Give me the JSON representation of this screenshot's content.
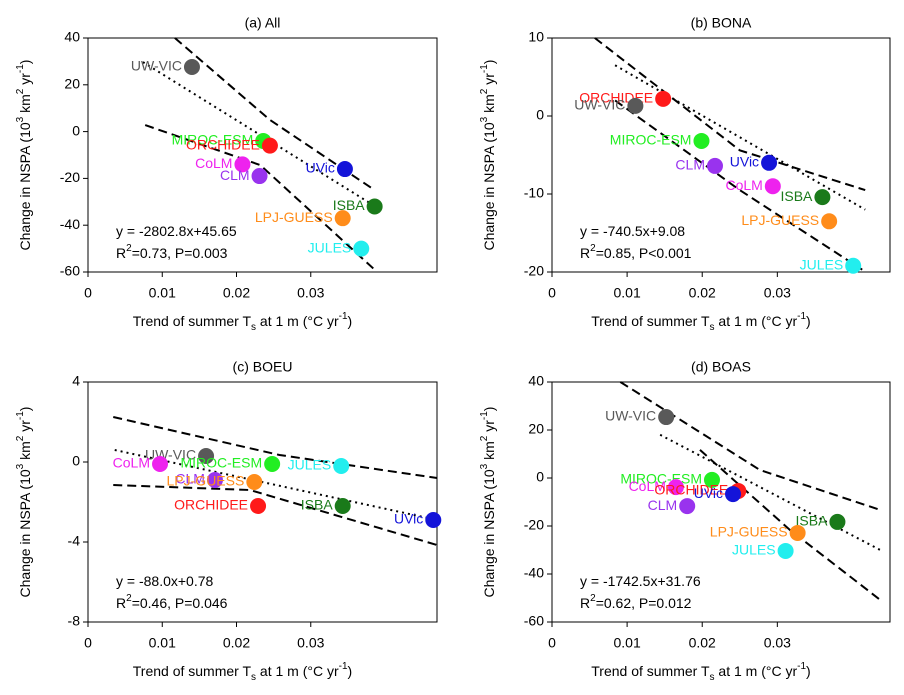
{
  "chart_data": [
    {
      "type": "scatter",
      "title": "(a) All",
      "xlabel": [
        {
          "text": "Trend of summer T"
        },
        {
          "text": "s",
          "shift": "sub"
        },
        {
          "text": " at 1 m (°C yr"
        },
        {
          "text": "-1",
          "shift": "sup"
        },
        {
          "text": ")"
        }
      ],
      "ylabel": [
        {
          "text": "Change in NSPA (10"
        },
        {
          "text": "3",
          "shift": "sup"
        },
        {
          "text": " km"
        },
        {
          "text": "2",
          "shift": "sup"
        },
        {
          "text": " yr"
        },
        {
          "text": "-1",
          "shift": "sup"
        },
        {
          "text": ")"
        }
      ],
      "xlim": [
        0,
        0.047
      ],
      "ylim": [
        -60,
        40
      ],
      "xticks": [
        0,
        0.01,
        0.02,
        0.03
      ],
      "yticks": [
        -60,
        -40,
        -20,
        0,
        20,
        40
      ],
      "series": [
        {
          "name": "UW-VIC",
          "color": "#595959",
          "x": [
            0.014
          ],
          "values": [
            27.6
          ]
        },
        {
          "name": "MIROC-ESM",
          "color": "#22ee22",
          "x": [
            0.0236
          ],
          "values": [
            -4
          ]
        },
        {
          "name": "ORCHIDEE",
          "color": "#ff1a1a",
          "x": [
            0.0245
          ],
          "values": [
            -6
          ]
        },
        {
          "name": "CoLM",
          "color": "#ee22ee",
          "x": [
            0.0208
          ],
          "values": [
            -14
          ]
        },
        {
          "name": "CLM",
          "color": "#9933ee",
          "x": [
            0.0231
          ],
          "values": [
            -19
          ]
        },
        {
          "name": "UVic",
          "color": "#1414d9",
          "x": [
            0.0346
          ],
          "values": [
            -16
          ]
        },
        {
          "name": "ISBA",
          "color": "#1a7a1a",
          "x": [
            0.0386
          ],
          "values": [
            -32
          ]
        },
        {
          "name": "LPJ-GUESS",
          "color": "#ff8c1a",
          "x": [
            0.0343
          ],
          "values": [
            -37
          ]
        },
        {
          "name": "JULES",
          "color": "#22eeee",
          "x": [
            0.0368
          ],
          "values": [
            -50
          ]
        }
      ],
      "lines": [
        {
          "style": "dotted",
          "x": [
            0.0074,
            0.0386
          ],
          "values": [
            29.7,
            -31.8
          ]
        },
        {
          "style": "dashed",
          "x": [
            0.0117,
            0.0245,
            0.0386
          ],
          "values": [
            40,
            5,
            -25
          ]
        },
        {
          "style": "dashed",
          "x": [
            0.0077,
            0.0232,
            0.0386
          ],
          "values": [
            2.8,
            -14.3,
            -59
          ]
        }
      ],
      "annotations": [
        [
          {
            "text": "y = -2802.8x+45.65"
          }
        ],
        [
          {
            "text": "R"
          },
          {
            "text": "2",
            "shift": "sup"
          },
          {
            "text": "=0.73, P=0.003"
          }
        ]
      ]
    },
    {
      "type": "scatter",
      "title": "(b) BONA",
      "xlabel": [
        {
          "text": "Trend of summer T"
        },
        {
          "text": "s",
          "shift": "sub"
        },
        {
          "text": " at 1 m (°C yr"
        },
        {
          "text": "-1",
          "shift": "sup"
        },
        {
          "text": ")"
        }
      ],
      "ylabel": [
        {
          "text": "Change in NSPA (10"
        },
        {
          "text": "3",
          "shift": "sup"
        },
        {
          "text": " km"
        },
        {
          "text": "2",
          "shift": "sup"
        },
        {
          "text": " yr"
        },
        {
          "text": "-1",
          "shift": "sup"
        },
        {
          "text": ")"
        }
      ],
      "xlim": [
        0,
        0.045
      ],
      "ylim": [
        -20,
        10
      ],
      "xticks": [
        0,
        0.01,
        0.02,
        0.03
      ],
      "yticks": [
        -20,
        -10,
        0,
        10
      ],
      "series": [
        {
          "name": "ORCHIDEE",
          "color": "#ff1a1a",
          "x": [
            0.0148
          ],
          "values": [
            2.2
          ]
        },
        {
          "name": "UW-VIC",
          "color": "#595959",
          "x": [
            0.0111
          ],
          "values": [
            1.3
          ]
        },
        {
          "name": "MIROC-ESM",
          "color": "#22ee22",
          "x": [
            0.0199
          ],
          "values": [
            -3.2
          ]
        },
        {
          "name": "UVic",
          "color": "#1414d9",
          "x": [
            0.0289
          ],
          "values": [
            -6.0
          ]
        },
        {
          "name": "CLM",
          "color": "#9933ee",
          "x": [
            0.0217
          ],
          "values": [
            -6.4
          ]
        },
        {
          "name": "CoLM",
          "color": "#ee22ee",
          "x": [
            0.0294
          ],
          "values": [
            -9.0
          ]
        },
        {
          "name": "ISBA",
          "color": "#1a7a1a",
          "x": [
            0.036
          ],
          "values": [
            -10.4
          ]
        },
        {
          "name": "LPJ-GUESS",
          "color": "#ff8c1a",
          "x": [
            0.0369
          ],
          "values": [
            -13.5
          ]
        },
        {
          "name": "JULES",
          "color": "#22eeee",
          "x": [
            0.0401
          ],
          "values": [
            -19.2
          ]
        }
      ],
      "lines": [
        {
          "style": "dotted",
          "x": [
            0.0084,
            0.0417
          ],
          "values": [
            6.5,
            -12
          ]
        },
        {
          "style": "dashed",
          "x": [
            0.0057,
            0.025,
            0.0417
          ],
          "values": [
            10,
            -4.4,
            -9.5
          ]
        },
        {
          "style": "dashed",
          "x": [
            0.0084,
            0.025,
            0.0413
          ],
          "values": [
            2,
            -9.5,
            -19.7
          ]
        }
      ],
      "annotations": [
        [
          {
            "text": "y = -740.5x+9.08"
          }
        ],
        [
          {
            "text": "R"
          },
          {
            "text": "2",
            "shift": "sup"
          },
          {
            "text": "=0.85, P<0.001"
          }
        ]
      ]
    },
    {
      "type": "scatter",
      "title": "(c) BOEU",
      "xlabel": [
        {
          "text": "Trend of summer T"
        },
        {
          "text": "s",
          "shift": "sub"
        },
        {
          "text": " at 1 m (°C yr"
        },
        {
          "text": "-1",
          "shift": "sup"
        },
        {
          "text": ")"
        }
      ],
      "ylabel": [
        {
          "text": "Change in NSPA (10"
        },
        {
          "text": "3",
          "shift": "sup"
        },
        {
          "text": " km"
        },
        {
          "text": "2",
          "shift": "sup"
        },
        {
          "text": " yr"
        },
        {
          "text": "-1",
          "shift": "sup"
        },
        {
          "text": ")"
        }
      ],
      "xlim": [
        0,
        0.047
      ],
      "ylim": [
        -8,
        4
      ],
      "xticks": [
        0,
        0.01,
        0.02,
        0.03
      ],
      "yticks": [
        -8,
        -4,
        0,
        4
      ],
      "series": [
        {
          "name": "UW-VIC",
          "color": "#595959",
          "x": [
            0.0159
          ],
          "values": [
            0.3
          ]
        },
        {
          "name": "CoLM",
          "color": "#ee22ee",
          "x": [
            0.0097
          ],
          "values": [
            -0.1
          ]
        },
        {
          "name": "MIROC-ESM",
          "color": "#22ee22",
          "x": [
            0.0248
          ],
          "values": [
            -0.1
          ]
        },
        {
          "name": "JULES",
          "color": "#22eeee",
          "x": [
            0.0341
          ],
          "values": [
            -0.2
          ]
        },
        {
          "name": "CLM",
          "color": "#9933ee",
          "x": [
            0.0171
          ],
          "values": [
            -0.9
          ]
        },
        {
          "name": "LPJ-GUESS",
          "color": "#ff8c1a",
          "x": [
            0.0224
          ],
          "values": [
            -1.0
          ]
        },
        {
          "name": "ORCHIDEE",
          "color": "#ff1a1a",
          "x": [
            0.0229
          ],
          "values": [
            -2.2
          ]
        },
        {
          "name": "ISBA",
          "color": "#1a7a1a",
          "x": [
            0.0343
          ],
          "values": [
            -2.2
          ]
        },
        {
          "name": "UVic",
          "color": "#1414d9",
          "x": [
            0.0465
          ],
          "values": [
            -2.9
          ]
        }
      ],
      "lines": [
        {
          "style": "dotted",
          "x": [
            0.0036,
            0.047
          ],
          "values": [
            0.6,
            -2.9
          ]
        },
        {
          "style": "dashed",
          "x": [
            0.0034,
            0.0258,
            0.047
          ],
          "values": [
            2.25,
            0.35,
            -0.8
          ]
        },
        {
          "style": "dashed",
          "x": [
            0.0034,
            0.0218,
            0.047
          ],
          "values": [
            -1.15,
            -1.4,
            -4.15
          ]
        }
      ],
      "annotations": [
        [
          {
            "text": "y = -88.0x+0.78"
          }
        ],
        [
          {
            "text": "R"
          },
          {
            "text": "2",
            "shift": "sup"
          },
          {
            "text": "=0.46, P=0.046"
          }
        ]
      ]
    },
    {
      "type": "scatter",
      "title": "(d) BOAS",
      "xlabel": [
        {
          "text": "Trend of summer T"
        },
        {
          "text": "s",
          "shift": "sub"
        },
        {
          "text": " at 1 m (°C yr"
        },
        {
          "text": "-1",
          "shift": "sup"
        },
        {
          "text": ")"
        }
      ],
      "ylabel": [
        {
          "text": "Change in NSPA (10"
        },
        {
          "text": "3",
          "shift": "sup"
        },
        {
          "text": " km"
        },
        {
          "text": "2",
          "shift": "sup"
        },
        {
          "text": " yr"
        },
        {
          "text": "-1",
          "shift": "sup"
        },
        {
          "text": ")"
        }
      ],
      "xlim": [
        0,
        0.045
      ],
      "ylim": [
        -60,
        40
      ],
      "xticks": [
        0,
        0.01,
        0.02,
        0.03
      ],
      "yticks": [
        -60,
        -40,
        -20,
        0,
        20,
        40
      ],
      "series": [
        {
          "name": "UW-VIC",
          "color": "#595959",
          "x": [
            0.0152
          ],
          "values": [
            25.4
          ]
        },
        {
          "name": "MIROC-ESM",
          "color": "#22ee22",
          "x": [
            0.0213
          ],
          "values": [
            -0.8
          ]
        },
        {
          "name": "CoLM",
          "color": "#ee22ee",
          "x": [
            0.0165
          ],
          "values": [
            -3.8
          ]
        },
        {
          "name": "ORCHIDEE",
          "color": "#ff1a1a",
          "x": [
            0.0248
          ],
          "values": [
            -5.4
          ]
        },
        {
          "name": "UVic",
          "color": "#1414d9",
          "x": [
            0.0241
          ],
          "values": [
            -6.7
          ]
        },
        {
          "name": "CLM",
          "color": "#9933ee",
          "x": [
            0.018
          ],
          "values": [
            -11.7
          ]
        },
        {
          "name": "ISBA",
          "color": "#1a7a1a",
          "x": [
            0.038
          ],
          "values": [
            -18.3
          ]
        },
        {
          "name": "LPJ-GUESS",
          "color": "#ff8c1a",
          "x": [
            0.0327
          ],
          "values": [
            -22.9
          ]
        },
        {
          "name": "JULES",
          "color": "#22eeee",
          "x": [
            0.0311
          ],
          "values": [
            -30.4
          ]
        }
      ],
      "lines": [
        {
          "style": "dotted",
          "x": [
            0.0144,
            0.0437
          ],
          "values": [
            18,
            -30
          ]
        },
        {
          "style": "dashed",
          "x": [
            0.0091,
            0.0277,
            0.0437
          ],
          "values": [
            40,
            3.3,
            -13.3
          ]
        },
        {
          "style": "dashed",
          "x": [
            0.0197,
            0.0317,
            0.0437
          ],
          "values": [
            11.7,
            -21.7,
            -50.8
          ]
        }
      ],
      "annotations": [
        [
          {
            "text": "y = -1742.5x+31.76"
          }
        ],
        [
          {
            "text": "R"
          },
          {
            "text": "2",
            "shift": "sup"
          },
          {
            "text": "=0.62, P=0.012"
          }
        ]
      ]
    }
  ]
}
